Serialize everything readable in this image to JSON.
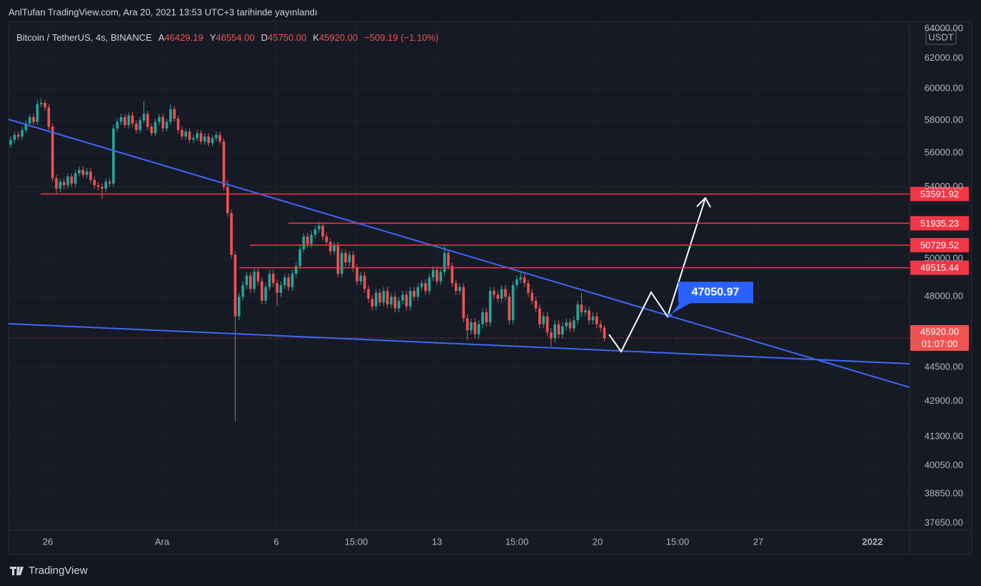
{
  "page_header": "AnlTufan TradingView.com, Ara 20, 2021 13:53 UTC+3 tarihinde yayınlandı",
  "footer_logo": "TradingView",
  "chart_data": {
    "type": "candlestick",
    "symbol": "Bitcoin / TetherUS, 4s, BINANCE",
    "ohlc_header": [
      {
        "key": "A",
        "value": "46429.19"
      },
      {
        "key": "Y",
        "value": "46554.00"
      },
      {
        "key": "D",
        "value": "45750.00"
      },
      {
        "key": "K",
        "value": "45920.00"
      }
    ],
    "change": "−509.19 (−1.10%)",
    "currency": "USDT",
    "log_scale": true,
    "grid": true,
    "up_color": "#26a69a",
    "down_color": "#ef5350",
    "ylim": [
      37362,
      64490
    ],
    "yticks": [
      {
        "value": 64000,
        "label": "64000.00"
      },
      {
        "value": 62000,
        "label": "62000.00"
      },
      {
        "value": 60000,
        "label": "60000.00"
      },
      {
        "value": 58000,
        "label": "58000.00"
      },
      {
        "value": 56000,
        "label": "56000.00"
      },
      {
        "value": 54000,
        "label": "54000.00"
      },
      {
        "value": 50000,
        "label": "50000.00"
      },
      {
        "value": 48000,
        "label": "48000.00"
      },
      {
        "value": 44500,
        "label": "44500.00"
      },
      {
        "value": 42900,
        "label": "42900.00"
      },
      {
        "value": 41300,
        "label": "41300.00"
      },
      {
        "value": 40050,
        "label": "40050.00"
      },
      {
        "value": 38850,
        "label": "38850.00"
      },
      {
        "value": 37650,
        "label": "37650.00"
      }
    ],
    "xticks": [
      "26",
      "Ara",
      "6",
      "15:00",
      "13",
      "15:00",
      "20",
      "15:00",
      "27",
      "2022"
    ],
    "levels": [
      53591.92,
      51935.23,
      50729.52,
      49515.44
    ],
    "level_color": "#f23645",
    "target": 47050.97,
    "last_price": {
      "value": 45920,
      "label": "45920.00",
      "countdown": "01:07:00"
    },
    "candles": [
      [
        56500,
        57000,
        56300,
        56800
      ],
      [
        56800,
        57300,
        56600,
        57100
      ],
      [
        57100,
        57300,
        56800,
        57000
      ],
      [
        57000,
        57600,
        56800,
        57400
      ],
      [
        57400,
        58000,
        57200,
        57800
      ],
      [
        57800,
        58400,
        57600,
        58200
      ],
      [
        58200,
        58400,
        57700,
        57900
      ],
      [
        57900,
        59300,
        57700,
        59000
      ],
      [
        59000,
        59400,
        58800,
        59100
      ],
      [
        59100,
        59300,
        58600,
        58800
      ],
      [
        58800,
        59000,
        57400,
        57600
      ],
      [
        57600,
        57800,
        54300,
        54500
      ],
      [
        54500,
        54700,
        53600,
        53900
      ],
      [
        53900,
        54500,
        53700,
        54300
      ],
      [
        54300,
        54500,
        53900,
        54100
      ],
      [
        54100,
        54800,
        53900,
        54600
      ],
      [
        54600,
        54800,
        54000,
        54200
      ],
      [
        54200,
        55000,
        54000,
        54800
      ],
      [
        54800,
        55200,
        54600,
        55000
      ],
      [
        55000,
        55200,
        54500,
        54700
      ],
      [
        54700,
        55100,
        54500,
        54900
      ],
      [
        54900,
        55100,
        54200,
        54400
      ],
      [
        54400,
        54600,
        53900,
        54100
      ],
      [
        54100,
        54300,
        53800,
        54000
      ],
      [
        54000,
        54200,
        53300,
        53900
      ],
      [
        53900,
        54500,
        53700,
        54300
      ],
      [
        54300,
        54500,
        54000,
        54200
      ],
      [
        54200,
        57700,
        54000,
        57500
      ],
      [
        57500,
        58100,
        57300,
        57900
      ],
      [
        57900,
        58400,
        57700,
        58200
      ],
      [
        58200,
        58400,
        57500,
        57700
      ],
      [
        57700,
        58500,
        57500,
        58300
      ],
      [
        58300,
        58500,
        57600,
        57800
      ],
      [
        57800,
        58000,
        57200,
        57400
      ],
      [
        57400,
        58200,
        57200,
        58000
      ],
      [
        58000,
        59200,
        57800,
        58400
      ],
      [
        58400,
        58600,
        57400,
        57600
      ],
      [
        57600,
        57800,
        57000,
        57200
      ],
      [
        57200,
        58100,
        57000,
        57900
      ],
      [
        57900,
        58400,
        57700,
        58200
      ],
      [
        58200,
        58400,
        57300,
        57500
      ],
      [
        57500,
        58100,
        57300,
        57900
      ],
      [
        57900,
        59000,
        57700,
        58700
      ],
      [
        58700,
        58900,
        57900,
        58100
      ],
      [
        58100,
        58300,
        57200,
        57400
      ],
      [
        57400,
        57600,
        56800,
        57000
      ],
      [
        57000,
        57500,
        56800,
        57300
      ],
      [
        57300,
        57500,
        56600,
        56800
      ],
      [
        56800,
        57100,
        56600,
        56900
      ],
      [
        56900,
        57400,
        56700,
        57200
      ],
      [
        57200,
        57400,
        56500,
        56700
      ],
      [
        56700,
        57200,
        56500,
        57000
      ],
      [
        57000,
        57200,
        56400,
        56600
      ],
      [
        56600,
        57100,
        56400,
        56900
      ],
      [
        56900,
        57300,
        56700,
        57100
      ],
      [
        57100,
        57300,
        56500,
        56700
      ],
      [
        56700,
        56900,
        53800,
        54000
      ],
      [
        54000,
        54400,
        52300,
        52500
      ],
      [
        52500,
        52700,
        50000,
        50200
      ],
      [
        50200,
        50400,
        42000,
        47000
      ],
      [
        47000,
        48200,
        46800,
        48000
      ],
      [
        48000,
        48800,
        47800,
        48600
      ],
      [
        48600,
        49300,
        48400,
        49100
      ],
      [
        49100,
        49300,
        48200,
        48400
      ],
      [
        48400,
        49500,
        48200,
        49300
      ],
      [
        49300,
        49500,
        48600,
        48800
      ],
      [
        48800,
        49000,
        47600,
        47800
      ],
      [
        47800,
        48700,
        47600,
        48500
      ],
      [
        48500,
        49400,
        48300,
        49200
      ],
      [
        49200,
        49400,
        48500,
        48700
      ],
      [
        48700,
        48900,
        47500,
        48200
      ],
      [
        48200,
        48800,
        48000,
        48600
      ],
      [
        48600,
        49200,
        48400,
        49000
      ],
      [
        49000,
        49200,
        48300,
        48500
      ],
      [
        48500,
        49400,
        48300,
        49200
      ],
      [
        49200,
        49800,
        49000,
        49600
      ],
      [
        49600,
        50700,
        49400,
        50500
      ],
      [
        50500,
        51400,
        50300,
        51200
      ],
      [
        51200,
        51400,
        50600,
        50800
      ],
      [
        50800,
        51500,
        50600,
        51300
      ],
      [
        51300,
        51800,
        51100,
        51600
      ],
      [
        51600,
        52000,
        51400,
        51800
      ],
      [
        51800,
        52000,
        51000,
        51200
      ],
      [
        51200,
        51400,
        50700,
        50900
      ],
      [
        50900,
        51100,
        50200,
        50400
      ],
      [
        50400,
        50900,
        50200,
        50700
      ],
      [
        50700,
        50900,
        49000,
        49200
      ],
      [
        49200,
        50500,
        49000,
        50300
      ],
      [
        50300,
        50500,
        49600,
        49800
      ],
      [
        49800,
        50400,
        49600,
        50200
      ],
      [
        50200,
        50400,
        49300,
        49500
      ],
      [
        49500,
        49700,
        48600,
        48800
      ],
      [
        48800,
        49300,
        48600,
        49100
      ],
      [
        49100,
        49300,
        48200,
        48400
      ],
      [
        48400,
        48600,
        47700,
        47900
      ],
      [
        47900,
        48100,
        47300,
        47500
      ],
      [
        47500,
        48400,
        47300,
        48200
      ],
      [
        48200,
        48400,
        47500,
        47700
      ],
      [
        47700,
        48500,
        47500,
        48300
      ],
      [
        48300,
        48500,
        47400,
        47600
      ],
      [
        47600,
        48200,
        47400,
        48000
      ],
      [
        48000,
        48200,
        47200,
        47400
      ],
      [
        47400,
        48000,
        47200,
        47800
      ],
      [
        47800,
        48300,
        47600,
        48100
      ],
      [
        48100,
        48300,
        47300,
        47500
      ],
      [
        47500,
        48500,
        47300,
        48300
      ],
      [
        48300,
        48500,
        47800,
        48000
      ],
      [
        48000,
        48700,
        47800,
        48500
      ],
      [
        48500,
        48900,
        48300,
        48700
      ],
      [
        48700,
        48900,
        48100,
        48300
      ],
      [
        48300,
        49200,
        48100,
        49000
      ],
      [
        49000,
        49600,
        48800,
        49400
      ],
      [
        49400,
        49600,
        48600,
        48800
      ],
      [
        48800,
        49500,
        48600,
        49300
      ],
      [
        49300,
        50700,
        49100,
        50300
      ],
      [
        50300,
        50500,
        49400,
        49600
      ],
      [
        49600,
        49800,
        48500,
        48700
      ],
      [
        48700,
        48900,
        48100,
        48300
      ],
      [
        48300,
        48700,
        48100,
        48500
      ],
      [
        48500,
        48700,
        46700,
        46900
      ],
      [
        46900,
        47100,
        45800,
        46300
      ],
      [
        46300,
        46900,
        46100,
        46700
      ],
      [
        46700,
        46900,
        45900,
        46100
      ],
      [
        46100,
        46800,
        45900,
        46600
      ],
      [
        46600,
        47400,
        46400,
        47200
      ],
      [
        47200,
        47400,
        46500,
        46700
      ],
      [
        46700,
        48500,
        46500,
        48300
      ],
      [
        48300,
        48500,
        47900,
        48100
      ],
      [
        48100,
        48300,
        47700,
        47900
      ],
      [
        47900,
        48600,
        47700,
        48400
      ],
      [
        48400,
        48600,
        47800,
        48000
      ],
      [
        48000,
        48200,
        46600,
        46800
      ],
      [
        46800,
        48800,
        46600,
        48600
      ],
      [
        48600,
        49100,
        48400,
        48900
      ],
      [
        48900,
        49300,
        48700,
        49000
      ],
      [
        49000,
        49200,
        48500,
        48700
      ],
      [
        48700,
        48900,
        48000,
        48200
      ],
      [
        48200,
        48400,
        47600,
        47800
      ],
      [
        47800,
        48000,
        47200,
        47400
      ],
      [
        47400,
        47600,
        46400,
        46600
      ],
      [
        46600,
        47200,
        46400,
        47000
      ],
      [
        47000,
        47200,
        46000,
        46200
      ],
      [
        46200,
        46400,
        45500,
        45900
      ],
      [
        45900,
        46800,
        45700,
        46600
      ],
      [
        46600,
        46800,
        45900,
        46100
      ],
      [
        46100,
        46700,
        45900,
        46500
      ],
      [
        46500,
        46900,
        46300,
        46700
      ],
      [
        46700,
        46900,
        46200,
        46400
      ],
      [
        46400,
        47000,
        46200,
        46800
      ],
      [
        46800,
        47800,
        46600,
        47600
      ],
      [
        47600,
        48200,
        47000,
        47200
      ],
      [
        47200,
        47500,
        47000,
        47300
      ],
      [
        47300,
        47500,
        46600,
        46800
      ],
      [
        46800,
        47200,
        46600,
        47000
      ],
      [
        47000,
        47200,
        46400,
        46600
      ],
      [
        46600,
        46800,
        46200,
        46429.19
      ],
      [
        46429.19,
        46554,
        45750,
        45920
      ]
    ]
  }
}
